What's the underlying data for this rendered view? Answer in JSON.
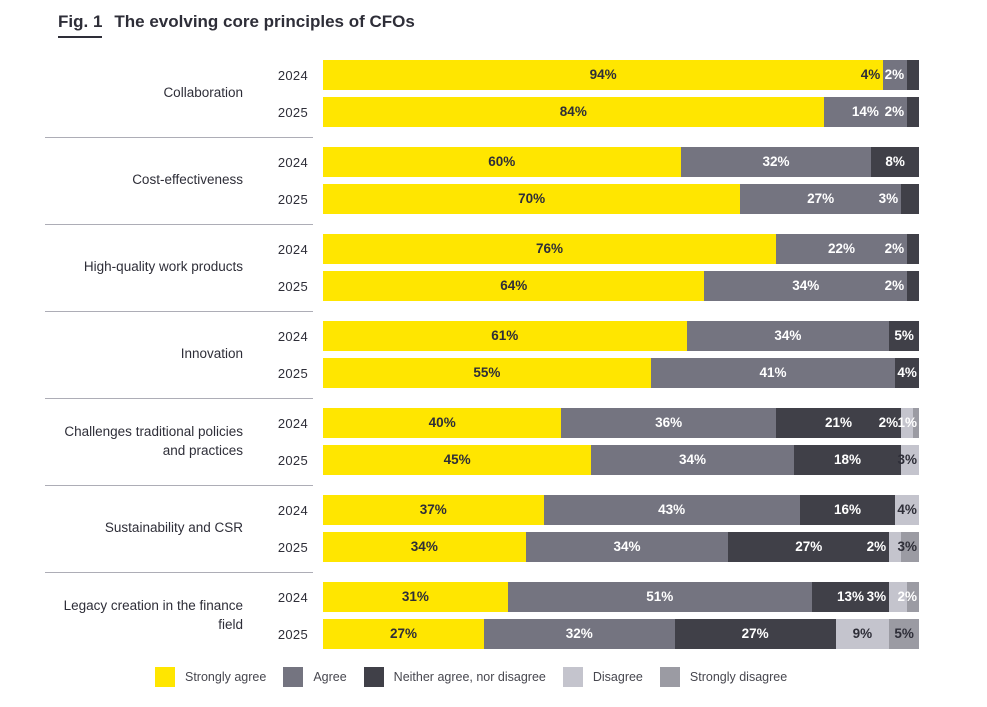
{
  "title": {
    "fig": "Fig. 1",
    "text": "The evolving core principles of CFOs"
  },
  "colors": {
    "strongly_agree": "#FFE600",
    "agree": "#747480",
    "neither": "#404048",
    "disagree": "#C4C4CD",
    "strongly_disagree": "#9B9BA3",
    "text_dark": "#2E2E38",
    "text_light": "#FFFFFF",
    "divider": "#ADADB6"
  },
  "chart_data": {
    "type": "bar",
    "variant": "horizontal-stacked",
    "unit": "percent",
    "title": "Fig. 1 The evolving core principles of CFOs",
    "xlim": [
      0,
      100
    ],
    "grid": false,
    "legend_position": "bottom",
    "legend": [
      "Strongly agree",
      "Agree",
      "Neither agree, nor disagree",
      "Disagree",
      "Strongly disagree"
    ],
    "years": [
      "2024",
      "2025"
    ],
    "categories": [
      "Collaboration",
      "Cost-effectiveness",
      "High-quality work products",
      "Innovation",
      "Challenges traditional policies and practices",
      "Sustainability and CSR",
      "Legacy creation in the finance field"
    ],
    "groups": [
      {
        "category": "Collaboration",
        "rows": [
          {
            "year": "2024",
            "segments": [
              {
                "key": "strongly_agree",
                "value": 94,
                "place": "center",
                "tone": "dark"
              },
              {
                "key": "agree",
                "value": 4,
                "place": "left-out",
                "tone": "dark"
              },
              {
                "key": "neither",
                "value": 2,
                "place": "left-out",
                "tone": "light"
              }
            ]
          },
          {
            "year": "2025",
            "segments": [
              {
                "key": "strongly_agree",
                "value": 84,
                "place": "center",
                "tone": "dark"
              },
              {
                "key": "agree",
                "value": 14,
                "place": "center",
                "tone": "light"
              },
              {
                "key": "neither",
                "value": 2,
                "place": "left-out",
                "tone": "light"
              }
            ]
          }
        ]
      },
      {
        "category": "Cost-effectiveness",
        "rows": [
          {
            "year": "2024",
            "segments": [
              {
                "key": "strongly_agree",
                "value": 60,
                "place": "center",
                "tone": "dark"
              },
              {
                "key": "agree",
                "value": 32,
                "place": "center",
                "tone": "light"
              },
              {
                "key": "neither",
                "value": 8,
                "place": "center",
                "tone": "light"
              }
            ]
          },
          {
            "year": "2025",
            "segments": [
              {
                "key": "strongly_agree",
                "value": 70,
                "place": "center",
                "tone": "dark"
              },
              {
                "key": "agree",
                "value": 27,
                "place": "center",
                "tone": "light"
              },
              {
                "key": "neither",
                "value": 3,
                "place": "left-out",
                "tone": "light"
              }
            ]
          }
        ]
      },
      {
        "category": "High-quality work products",
        "rows": [
          {
            "year": "2024",
            "segments": [
              {
                "key": "strongly_agree",
                "value": 76,
                "place": "center",
                "tone": "dark"
              },
              {
                "key": "agree",
                "value": 22,
                "place": "center",
                "tone": "light"
              },
              {
                "key": "neither",
                "value": 2,
                "place": "left-out",
                "tone": "light"
              }
            ]
          },
          {
            "year": "2025",
            "segments": [
              {
                "key": "strongly_agree",
                "value": 64,
                "place": "center",
                "tone": "dark"
              },
              {
                "key": "agree",
                "value": 34,
                "place": "center",
                "tone": "light"
              },
              {
                "key": "neither",
                "value": 2,
                "place": "left-out",
                "tone": "light"
              }
            ]
          }
        ]
      },
      {
        "category": "Innovation",
        "rows": [
          {
            "year": "2024",
            "segments": [
              {
                "key": "strongly_agree",
                "value": 61,
                "place": "center",
                "tone": "dark"
              },
              {
                "key": "agree",
                "value": 34,
                "place": "center",
                "tone": "light"
              },
              {
                "key": "neither",
                "value": 5,
                "place": "center",
                "tone": "light"
              }
            ]
          },
          {
            "year": "2025",
            "segments": [
              {
                "key": "strongly_agree",
                "value": 55,
                "place": "center",
                "tone": "dark"
              },
              {
                "key": "agree",
                "value": 41,
                "place": "center",
                "tone": "light"
              },
              {
                "key": "neither",
                "value": 4,
                "place": "center",
                "tone": "light"
              }
            ]
          }
        ]
      },
      {
        "category": "Challenges traditional policies and practices",
        "rows": [
          {
            "year": "2024",
            "segments": [
              {
                "key": "strongly_agree",
                "value": 40,
                "place": "center",
                "tone": "dark"
              },
              {
                "key": "agree",
                "value": 36,
                "place": "center",
                "tone": "light"
              },
              {
                "key": "neither",
                "value": 21,
                "place": "center",
                "tone": "light"
              },
              {
                "key": "disagree",
                "value": 2,
                "place": "left-out",
                "tone": "light"
              },
              {
                "key": "strongly_disagree",
                "value": 1,
                "place": "right-in",
                "tone": "light"
              }
            ]
          },
          {
            "year": "2025",
            "segments": [
              {
                "key": "strongly_agree",
                "value": 45,
                "place": "center",
                "tone": "dark"
              },
              {
                "key": "agree",
                "value": 34,
                "place": "center",
                "tone": "light"
              },
              {
                "key": "neither",
                "value": 18,
                "place": "center",
                "tone": "light"
              },
              {
                "key": "disagree",
                "value": 3,
                "place": "right-in",
                "tone": "dark"
              }
            ]
          }
        ]
      },
      {
        "category": "Sustainability and CSR",
        "rows": [
          {
            "year": "2024",
            "segments": [
              {
                "key": "strongly_agree",
                "value": 37,
                "place": "center",
                "tone": "dark"
              },
              {
                "key": "agree",
                "value": 43,
                "place": "center",
                "tone": "light"
              },
              {
                "key": "neither",
                "value": 16,
                "place": "center",
                "tone": "light"
              },
              {
                "key": "disagree",
                "value": 4,
                "place": "center",
                "tone": "dark"
              }
            ]
          },
          {
            "year": "2025",
            "segments": [
              {
                "key": "strongly_agree",
                "value": 34,
                "place": "center",
                "tone": "dark"
              },
              {
                "key": "agree",
                "value": 34,
                "place": "center",
                "tone": "light"
              },
              {
                "key": "neither",
                "value": 27,
                "place": "center",
                "tone": "light"
              },
              {
                "key": "disagree",
                "value": 2,
                "place": "left-out",
                "tone": "light"
              },
              {
                "key": "strongly_disagree",
                "value": 3,
                "place": "right-in",
                "tone": "dark"
              }
            ]
          }
        ]
      },
      {
        "category": "Legacy creation in the finance field",
        "rows": [
          {
            "year": "2024",
            "segments": [
              {
                "key": "strongly_agree",
                "value": 31,
                "place": "center",
                "tone": "dark"
              },
              {
                "key": "agree",
                "value": 51,
                "place": "center",
                "tone": "light"
              },
              {
                "key": "neither",
                "value": 13,
                "place": "center",
                "tone": "light"
              },
              {
                "key": "disagree",
                "value": 3,
                "place": "left-out",
                "tone": "light"
              },
              {
                "key": "strongly_disagree",
                "value": 2,
                "place": "right-in",
                "tone": "light"
              }
            ]
          },
          {
            "year": "2025",
            "segments": [
              {
                "key": "strongly_agree",
                "value": 27,
                "place": "center",
                "tone": "dark"
              },
              {
                "key": "agree",
                "value": 32,
                "place": "center",
                "tone": "light"
              },
              {
                "key": "neither",
                "value": 27,
                "place": "center",
                "tone": "light"
              },
              {
                "key": "disagree",
                "value": 9,
                "place": "center",
                "tone": "dark"
              },
              {
                "key": "strongly_disagree",
                "value": 5,
                "place": "center",
                "tone": "dark"
              }
            ]
          }
        ]
      }
    ]
  }
}
